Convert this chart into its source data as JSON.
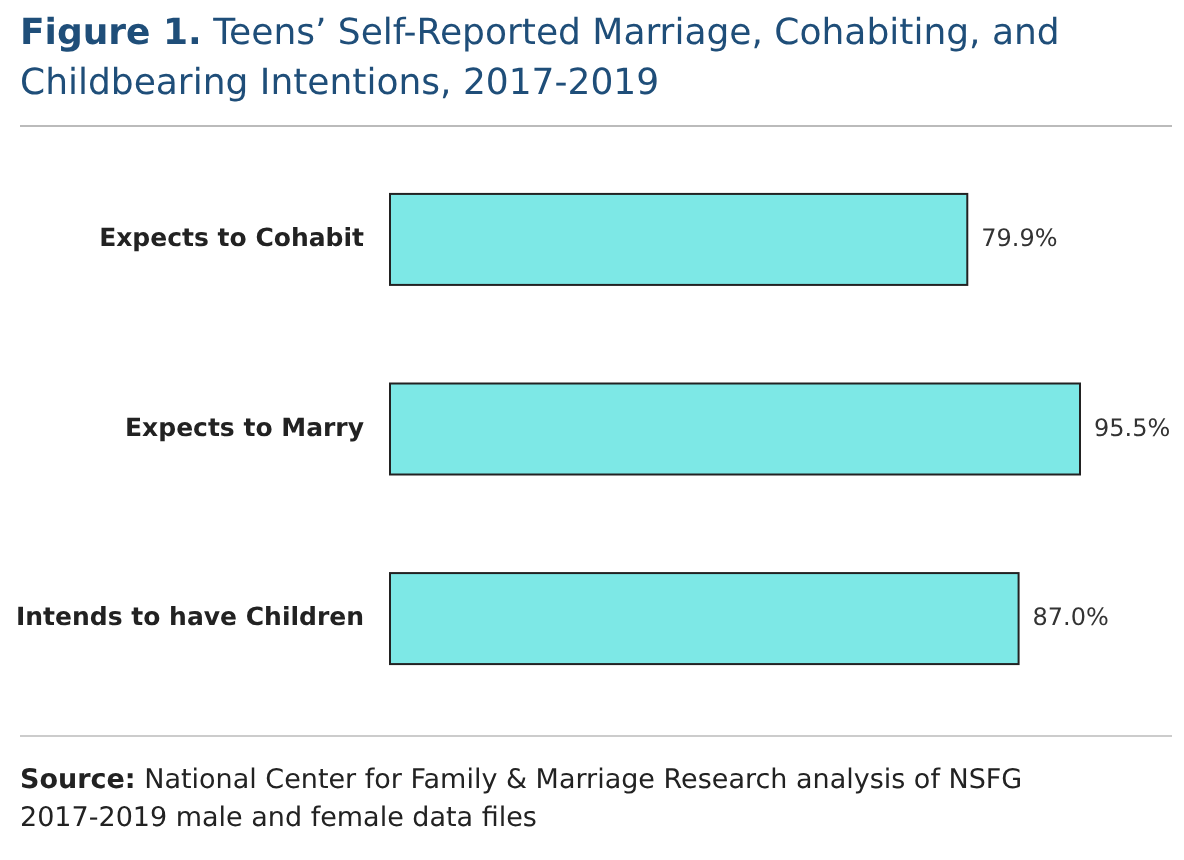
{
  "chart_data": {
    "type": "bar",
    "orientation": "horizontal",
    "title": "Figure 1. Teens’ Self-Reported Marriage, Cohabiting, and Childbearing Intentions, 2017-2019",
    "categories": [
      "Expects to Cohabit",
      "Expects to Marry",
      "Intends to have Children"
    ],
    "values": [
      79.9,
      95.5,
      87.0
    ],
    "value_labels": [
      "79.9%",
      "95.5%",
      "87.0%"
    ],
    "color": "#7de8e6",
    "annotations": [
      "Source: National Center for Family & Marriage Research analysis of NSFG 2017-2019 male and female data files"
    ]
  }
}
